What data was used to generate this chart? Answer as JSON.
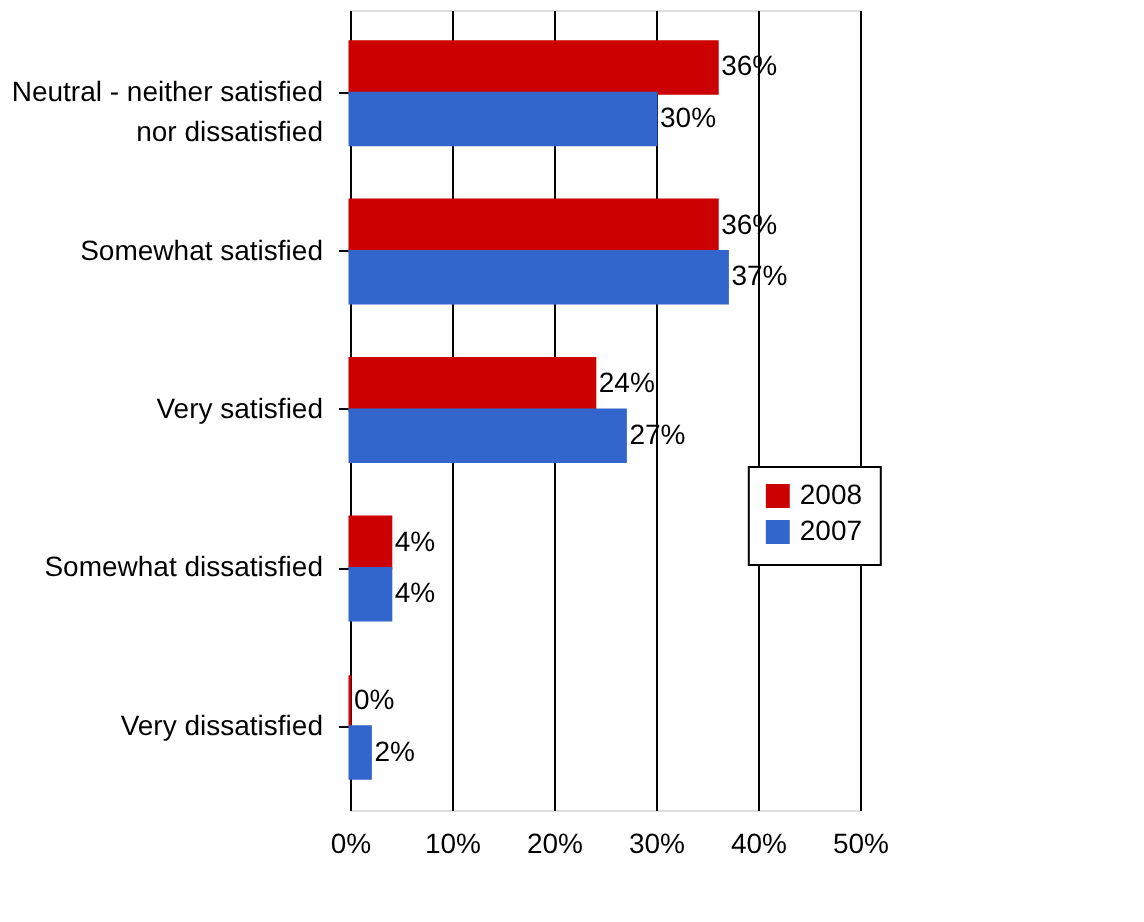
{
  "chart_data": {
    "type": "bar",
    "orientation": "horizontal",
    "categories": [
      "Neutral - neither satisfied nor dissatisfied",
      "Somewhat satisfied",
      "Very satisfied",
      "Somewhat dissatisfied",
      "Very dissatisfied"
    ],
    "series": [
      {
        "name": "2008",
        "color": "#cc0000",
        "values": [
          36,
          36,
          24,
          4,
          0
        ],
        "value_labels": [
          "36%",
          "36%",
          "24%",
          "4%",
          "0%"
        ]
      },
      {
        "name": "2007",
        "color": "#3366cc",
        "values": [
          30,
          37,
          27,
          4,
          2
        ],
        "value_labels": [
          "30%",
          "37%",
          "27%",
          "4%",
          "2%"
        ]
      }
    ],
    "xlim": [
      0,
      50
    ],
    "xticks": [
      {
        "value": 0,
        "label": "0%"
      },
      {
        "value": 10,
        "label": "10%"
      },
      {
        "value": 20,
        "label": "20%"
      },
      {
        "value": 30,
        "label": "30%"
      },
      {
        "value": 40,
        "label": "40%"
      },
      {
        "value": 50,
        "label": "50%"
      }
    ],
    "grid": "x",
    "legend": "right"
  }
}
